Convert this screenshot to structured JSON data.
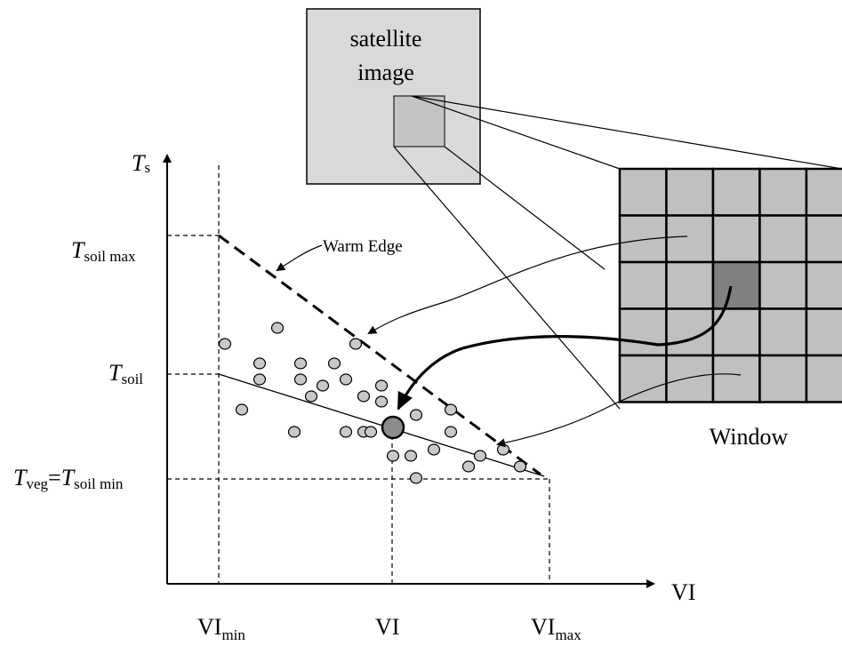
{
  "satellite": {
    "line1": "satellite",
    "line2": "image"
  },
  "window_label": "Window",
  "warm_edge_label": "Warm Edge",
  "axes": {
    "x_label": "VI",
    "y_label_main": "T",
    "y_label_sub": "s"
  },
  "y_ticks": {
    "soil_max": {
      "main": "T",
      "sub": "soil max"
    },
    "soil": {
      "main": "T",
      "sub": "soil"
    },
    "veg": {
      "main1": "T",
      "sub1": "veg",
      "eq": "=",
      "main2": "T",
      "sub2": "soil min"
    }
  },
  "x_ticks": {
    "vi_min": {
      "main": "VI",
      "sub": "min"
    },
    "vi": {
      "main": "VI"
    },
    "vi_max": {
      "main": "VI",
      "sub": "max"
    }
  },
  "colors": {
    "satellite_fill": "#d9d9d9",
    "grid_cell": "#c0c0c0",
    "grid_cell_dark": "#808080",
    "point_fill": "#c8c8c8",
    "highlight_point": "#8c8c8c"
  }
}
